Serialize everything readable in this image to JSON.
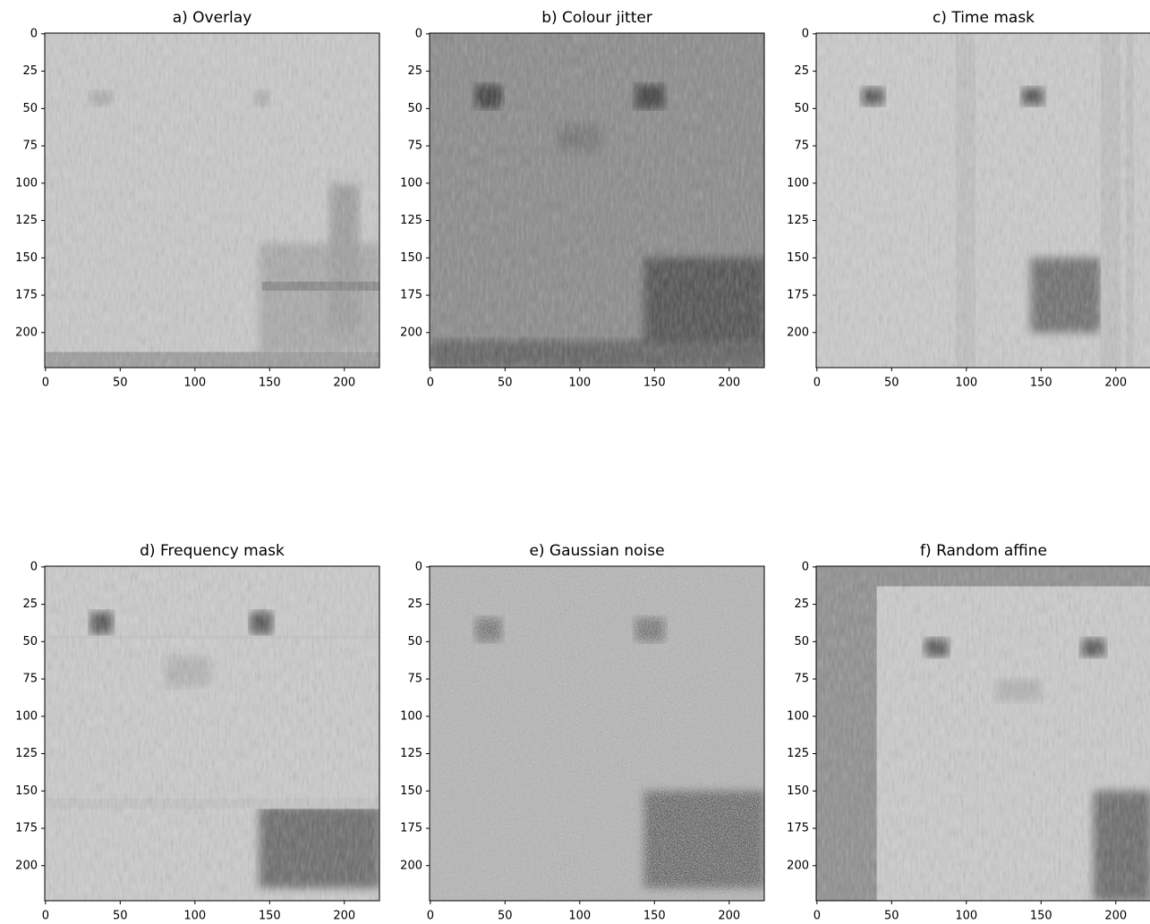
{
  "chart_data": [
    {
      "type": "image",
      "title": "a) Overlay",
      "xlim": [
        -0.5,
        223.5
      ],
      "ylim": [
        223.5,
        -0.5
      ],
      "xticks": [
        0,
        50,
        100,
        150,
        200
      ],
      "yticks": [
        0,
        25,
        50,
        75,
        100,
        125,
        150,
        175,
        200
      ]
    },
    {
      "type": "image",
      "title": "b) Colour jitter",
      "xlim": [
        -0.5,
        223.5
      ],
      "ylim": [
        223.5,
        -0.5
      ],
      "xticks": [
        0,
        50,
        100,
        150,
        200
      ],
      "yticks": [
        0,
        25,
        50,
        75,
        100,
        125,
        150,
        175,
        200
      ]
    },
    {
      "type": "image",
      "title": "c) Time mask",
      "xlim": [
        -0.5,
        223.5
      ],
      "ylim": [
        223.5,
        -0.5
      ],
      "xticks": [
        0,
        50,
        100,
        150,
        200
      ],
      "yticks": [
        0,
        25,
        50,
        75,
        100,
        125,
        150,
        175,
        200
      ]
    },
    {
      "type": "image",
      "title": "d) Frequency mask",
      "xlim": [
        -0.5,
        223.5
      ],
      "ylim": [
        223.5,
        -0.5
      ],
      "xticks": [
        0,
        50,
        100,
        150,
        200
      ],
      "yticks": [
        0,
        25,
        50,
        75,
        100,
        125,
        150,
        175,
        200
      ]
    },
    {
      "type": "image",
      "title": "e) Gaussian noise",
      "xlim": [
        -0.5,
        223.5
      ],
      "ylim": [
        223.5,
        -0.5
      ],
      "xticks": [
        0,
        50,
        100,
        150,
        200
      ],
      "yticks": [
        0,
        25,
        50,
        75,
        100,
        125,
        150,
        175,
        200
      ]
    },
    {
      "type": "image",
      "title": "f) Random affine",
      "xlim": [
        -0.5,
        223.5
      ],
      "ylim": [
        223.5,
        -0.5
      ],
      "xticks": [
        0,
        50,
        100,
        150,
        200
      ],
      "yticks": [
        0,
        25,
        50,
        75,
        100,
        125,
        150,
        175,
        200
      ]
    }
  ]
}
